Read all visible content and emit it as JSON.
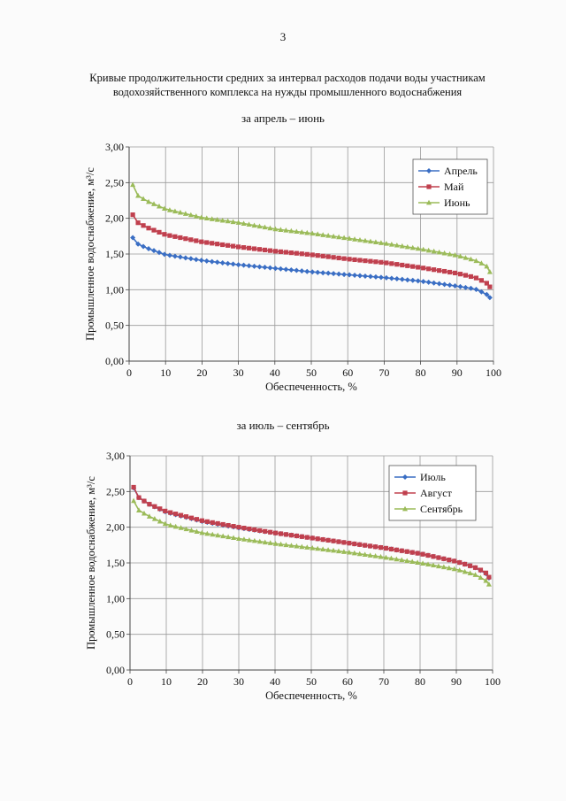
{
  "page": {
    "number": "3",
    "title_line1": "Кривые продолжительности средних за интервал расходов подачи воды участникам",
    "title_line2": "водохозяйственного комплекса на нужды промышленного водоснабжения",
    "subtitle_1": "за апрель – июнь",
    "subtitle_2": "за июль – сентябрь"
  },
  "chart_data": [
    {
      "type": "line",
      "xlabel": "Обеспеченность, %",
      "ylabel": "Промышленное водоснабжение, м³/с",
      "xlim": [
        0,
        100
      ],
      "ylim": [
        0,
        3
      ],
      "xticks": [
        "0",
        "10",
        "20",
        "30",
        "40",
        "50",
        "60",
        "70",
        "80",
        "90",
        "100"
      ],
      "yticks": [
        "0,00",
        "0,50",
        "1,00",
        "1,50",
        "2,00",
        "2,50",
        "3,00"
      ],
      "grid": true,
      "legend_position": "top-right",
      "series": [
        {
          "name": "Апрель",
          "color": "#3a6ec4",
          "marker": "diamond",
          "points": [
            [
              1,
              1.73
            ],
            [
              2,
              1.65
            ],
            [
              5,
              1.58
            ],
            [
              10,
              1.49
            ],
            [
              20,
              1.41
            ],
            [
              30,
              1.35
            ],
            [
              40,
              1.3
            ],
            [
              50,
              1.25
            ],
            [
              60,
              1.21
            ],
            [
              70,
              1.17
            ],
            [
              80,
              1.12
            ],
            [
              90,
              1.05
            ],
            [
              95,
              1.01
            ],
            [
              98,
              0.94
            ],
            [
              99,
              0.89
            ]
          ]
        },
        {
          "name": "Май",
          "color": "#c0404e",
          "marker": "square",
          "points": [
            [
              1,
              2.05
            ],
            [
              2,
              1.95
            ],
            [
              5,
              1.87
            ],
            [
              10,
              1.77
            ],
            [
              20,
              1.67
            ],
            [
              30,
              1.6
            ],
            [
              40,
              1.54
            ],
            [
              50,
              1.49
            ],
            [
              60,
              1.43
            ],
            [
              70,
              1.38
            ],
            [
              80,
              1.31
            ],
            [
              90,
              1.23
            ],
            [
              95,
              1.17
            ],
            [
              98,
              1.1
            ],
            [
              99,
              1.04
            ]
          ]
        },
        {
          "name": "Июнь",
          "color": "#9bbb59",
          "marker": "triangle",
          "points": [
            [
              1,
              2.47
            ],
            [
              2,
              2.33
            ],
            [
              5,
              2.24
            ],
            [
              10,
              2.13
            ],
            [
              20,
              2.01
            ],
            [
              30,
              1.94
            ],
            [
              40,
              1.85
            ],
            [
              50,
              1.79
            ],
            [
              60,
              1.72
            ],
            [
              70,
              1.65
            ],
            [
              80,
              1.57
            ],
            [
              90,
              1.48
            ],
            [
              95,
              1.41
            ],
            [
              98,
              1.34
            ],
            [
              99,
              1.25
            ]
          ]
        }
      ]
    },
    {
      "type": "line",
      "xlabel": "Обеспеченность, %",
      "ylabel": "Промышленное водоснабжение, м³/с",
      "xlim": [
        0,
        100
      ],
      "ylim": [
        0,
        3
      ],
      "xticks": [
        "0",
        "10",
        "20",
        "30",
        "40",
        "50",
        "60",
        "70",
        "80",
        "90",
        "100"
      ],
      "yticks": [
        "0,00",
        "0,50",
        "1,00",
        "1,50",
        "2,00",
        "2,50",
        "3,00"
      ],
      "grid": true,
      "legend_position": "top-right",
      "series": [
        {
          "name": "Июль",
          "color": "#3a6ec4",
          "marker": "diamond",
          "points": [
            [
              1,
              2.55
            ],
            [
              2,
              2.43
            ],
            [
              5,
              2.33
            ],
            [
              10,
              2.21
            ],
            [
              20,
              2.08
            ],
            [
              30,
              1.99
            ],
            [
              40,
              1.92
            ],
            [
              50,
              1.85
            ],
            [
              60,
              1.78
            ],
            [
              70,
              1.71
            ],
            [
              80,
              1.63
            ],
            [
              90,
              1.52
            ],
            [
              95,
              1.44
            ],
            [
              98,
              1.36
            ],
            [
              99,
              1.29
            ]
          ]
        },
        {
          "name": "Август",
          "color": "#c0404e",
          "marker": "square",
          "points": [
            [
              1,
              2.56
            ],
            [
              2,
              2.43
            ],
            [
              5,
              2.33
            ],
            [
              10,
              2.22
            ],
            [
              20,
              2.09
            ],
            [
              30,
              2.0
            ],
            [
              40,
              1.92
            ],
            [
              50,
              1.85
            ],
            [
              60,
              1.78
            ],
            [
              70,
              1.71
            ],
            [
              80,
              1.63
            ],
            [
              90,
              1.52
            ],
            [
              95,
              1.44
            ],
            [
              98,
              1.37
            ],
            [
              99,
              1.3
            ]
          ]
        },
        {
          "name": "Сентябрь",
          "color": "#9bbb59",
          "marker": "triangle",
          "points": [
            [
              1,
              2.37
            ],
            [
              2,
              2.25
            ],
            [
              5,
              2.16
            ],
            [
              10,
              2.04
            ],
            [
              20,
              1.92
            ],
            [
              30,
              1.84
            ],
            [
              40,
              1.77
            ],
            [
              50,
              1.71
            ],
            [
              60,
              1.65
            ],
            [
              70,
              1.58
            ],
            [
              80,
              1.5
            ],
            [
              90,
              1.41
            ],
            [
              95,
              1.34
            ],
            [
              98,
              1.26
            ],
            [
              99,
              1.2
            ]
          ]
        }
      ]
    }
  ]
}
